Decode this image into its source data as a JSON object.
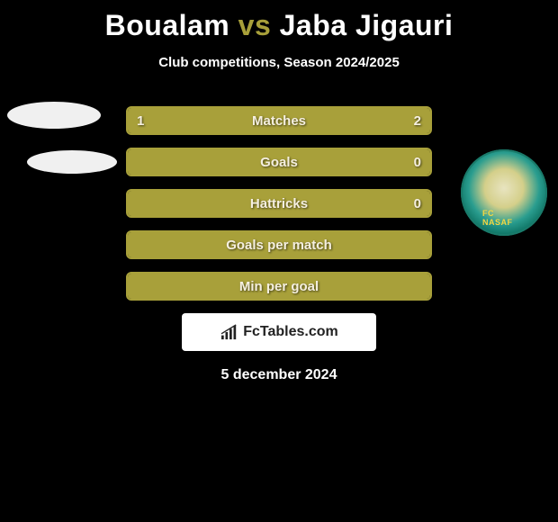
{
  "title": {
    "player1": "Boualam",
    "vs": "vs",
    "player2": "Jaba Jigauri"
  },
  "subtitle": "Club competitions, Season 2024/2025",
  "bars": {
    "border_color": "#a8a03a",
    "fill_color": "#a8a03a",
    "empty_color": "#000000",
    "rows": [
      {
        "label": "Matches",
        "left_value": "1",
        "right_value": "2",
        "left_pct": 33.3,
        "right_pct": 66.7,
        "show_values": true
      },
      {
        "label": "Goals",
        "left_value": "",
        "right_value": "0",
        "left_pct": 100,
        "right_pct": 0,
        "show_values": true
      },
      {
        "label": "Hattricks",
        "left_value": "",
        "right_value": "0",
        "left_pct": 100,
        "right_pct": 0,
        "show_values": true
      },
      {
        "label": "Goals per match",
        "left_value": "",
        "right_value": "",
        "left_pct": 100,
        "right_pct": 0,
        "show_values": false
      },
      {
        "label": "Min per goal",
        "left_value": "",
        "right_value": "",
        "left_pct": 100,
        "right_pct": 0,
        "show_values": false
      }
    ]
  },
  "attribution": "FcTables.com",
  "date": "5 december 2024",
  "club_right_name": "FC NASAF",
  "colors": {
    "background": "#000000",
    "title_text": "#ffffff",
    "vs_text": "#a8a03a",
    "bar_text": "#f5efe0"
  }
}
